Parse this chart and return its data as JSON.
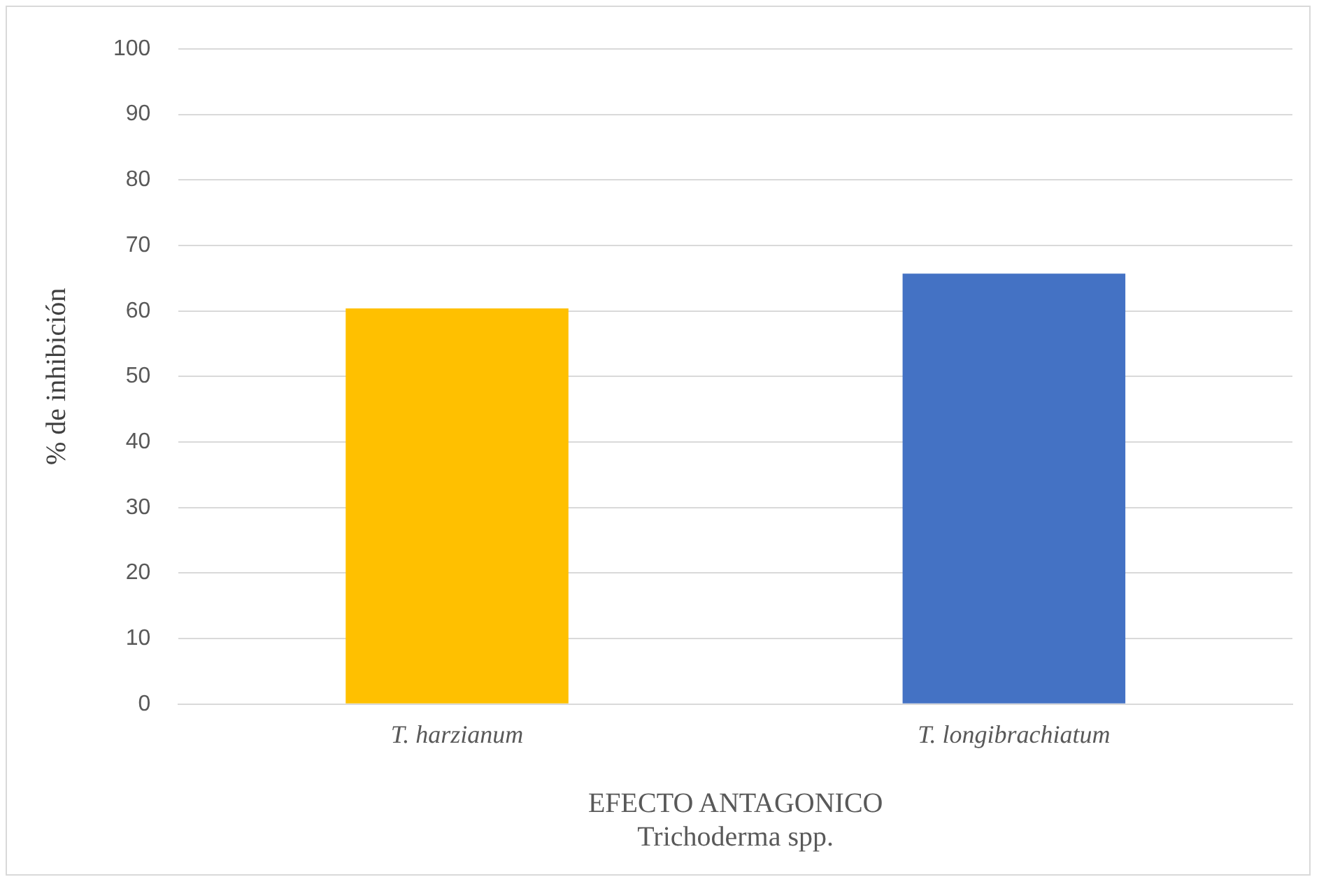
{
  "chart_data": {
    "type": "bar",
    "xlabel": "EFECTO ANTAGONICO\nTrichoderma spp.",
    "ylabel": "% de inhibición",
    "categories": [
      "T. harzianum",
      "T. longibrachiatum"
    ],
    "values": [
      60.4,
      65.7
    ],
    "colors": [
      "#ffc000",
      "#4472c4"
    ],
    "ylim": [
      0,
      100
    ],
    "yticks": [
      0,
      10,
      20,
      30,
      40,
      50,
      60,
      70,
      80,
      90,
      100
    ],
    "grid": "y",
    "legend": false
  }
}
